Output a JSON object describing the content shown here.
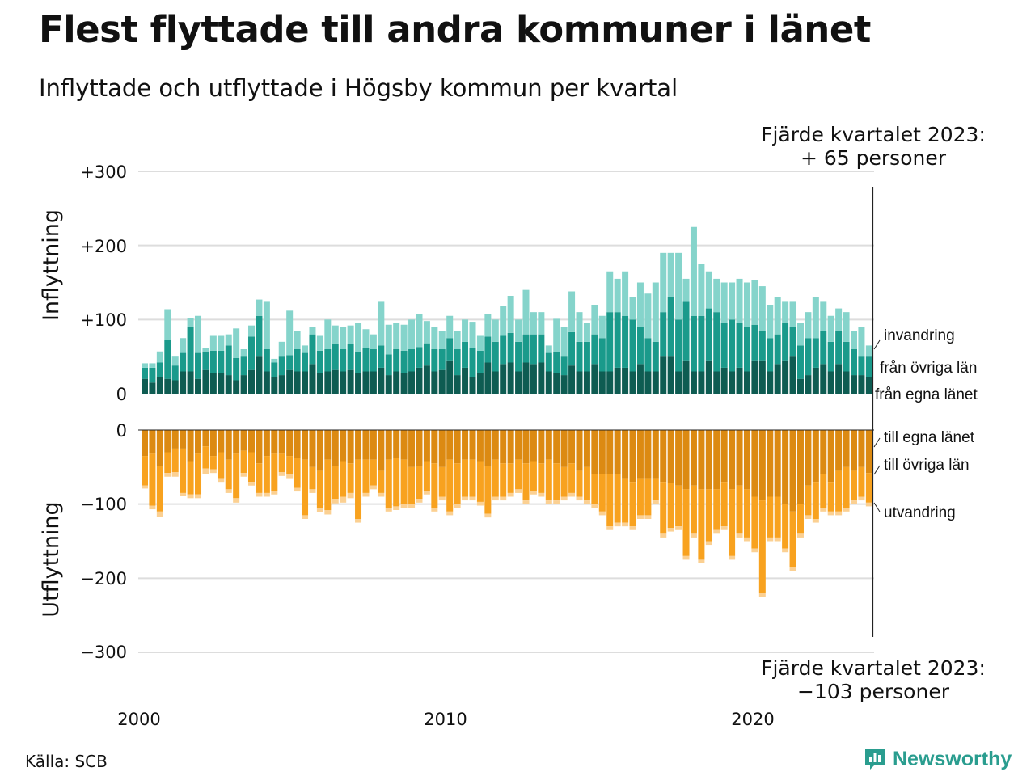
{
  "title": "Flest flyttade till andra kommuner i länet",
  "subtitle": "Inflyttade och utflyttade i Högsby kommun per kvartal",
  "source": "Källa: SCB",
  "brand": "Newsworthy",
  "annotation_top": [
    "Fjärde kvartalet 2023:",
    "+ 65 personer"
  ],
  "annotation_bottom": [
    "Fjärde kvartalet 2023:",
    "−103 personer"
  ],
  "colors": {
    "in_egna": "#0e5c52",
    "in_ovriga": "#1a9a8b",
    "in_invandring": "#85d4cb",
    "ut_egna": "#dc8a12",
    "ut_ovriga": "#f8a21f",
    "ut_utvandring": "#fbd092",
    "grid": "#dddddd",
    "brand": "#2a9d8f"
  },
  "chart_data": [
    {
      "type": "bar",
      "stacked": true,
      "ylabel": "Inflyttning",
      "ylim": [
        0,
        300
      ],
      "yticks": [
        "0",
        "+100",
        "+200",
        "+300"
      ],
      "xticks": [
        "2000",
        "2010",
        "2020"
      ],
      "grid": true,
      "x": [
        "2000 Q1",
        "2000 Q2",
        "2000 Q3",
        "2000 Q4",
        "2001 Q1",
        "2001 Q2",
        "2001 Q3",
        "2001 Q4",
        "2002 Q1",
        "2002 Q2",
        "2002 Q3",
        "2002 Q4",
        "2003 Q1",
        "2003 Q2",
        "2003 Q3",
        "2003 Q4",
        "2004 Q1",
        "2004 Q2",
        "2004 Q3",
        "2004 Q4",
        "2005 Q1",
        "2005 Q2",
        "2005 Q3",
        "2005 Q4",
        "2006 Q1",
        "2006 Q2",
        "2006 Q3",
        "2006 Q4",
        "2007 Q1",
        "2007 Q2",
        "2007 Q3",
        "2007 Q4",
        "2008 Q1",
        "2008 Q2",
        "2008 Q3",
        "2008 Q4",
        "2009 Q1",
        "2009 Q2",
        "2009 Q3",
        "2009 Q4",
        "2010 Q1",
        "2010 Q2",
        "2010 Q3",
        "2010 Q4",
        "2011 Q1",
        "2011 Q2",
        "2011 Q3",
        "2011 Q4",
        "2012 Q1",
        "2012 Q2",
        "2012 Q3",
        "2012 Q4",
        "2013 Q1",
        "2013 Q2",
        "2013 Q3",
        "2013 Q4",
        "2014 Q1",
        "2014 Q2",
        "2014 Q3",
        "2014 Q4",
        "2015 Q1",
        "2015 Q2",
        "2015 Q3",
        "2015 Q4",
        "2016 Q1",
        "2016 Q2",
        "2016 Q3",
        "2016 Q4",
        "2017 Q1",
        "2017 Q2",
        "2017 Q3",
        "2017 Q4",
        "2018 Q1",
        "2018 Q2",
        "2018 Q3",
        "2018 Q4",
        "2019 Q1",
        "2019 Q2",
        "2019 Q3",
        "2019 Q4",
        "2020 Q1",
        "2020 Q2",
        "2020 Q3",
        "2020 Q4",
        "2021 Q1",
        "2021 Q2",
        "2021 Q3",
        "2021 Q4",
        "2022 Q1",
        "2022 Q2",
        "2022 Q3",
        "2022 Q4",
        "2023 Q1",
        "2023 Q2",
        "2023 Q3",
        "2023 Q4"
      ],
      "series": [
        {
          "name": "från egna länet",
          "values": [
            20,
            15,
            22,
            20,
            18,
            30,
            30,
            20,
            32,
            28,
            28,
            25,
            18,
            25,
            32,
            50,
            30,
            22,
            25,
            32,
            30,
            30,
            40,
            28,
            30,
            32,
            30,
            32,
            28,
            30,
            30,
            35,
            25,
            30,
            28,
            30,
            35,
            38,
            30,
            32,
            45,
            25,
            35,
            22,
            28,
            42,
            30,
            40,
            42,
            30,
            42,
            40,
            42,
            30,
            28,
            25,
            38,
            30,
            30,
            40,
            30,
            30,
            35,
            35,
            30,
            40,
            30,
            30,
            50,
            50,
            30,
            45,
            30,
            30,
            45,
            30,
            35,
            30,
            35,
            30,
            45,
            45,
            30,
            40,
            45,
            50,
            20,
            25,
            35,
            40,
            30,
            40,
            30,
            25,
            25,
            22
          ]
        },
        {
          "name": "från övriga län",
          "values": [
            15,
            20,
            20,
            52,
            20,
            25,
            60,
            35,
            25,
            30,
            30,
            40,
            30,
            25,
            45,
            55,
            30,
            20,
            25,
            20,
            30,
            25,
            40,
            30,
            30,
            35,
            30,
            35,
            28,
            32,
            30,
            30,
            28,
            30,
            30,
            30,
            28,
            30,
            30,
            28,
            30,
            35,
            35,
            40,
            30,
            35,
            40,
            38,
            40,
            40,
            38,
            40,
            38,
            25,
            28,
            25,
            45,
            40,
            40,
            40,
            45,
            80,
            75,
            70,
            70,
            50,
            45,
            40,
            60,
            80,
            70,
            80,
            75,
            75,
            70,
            80,
            60,
            70,
            60,
            60,
            48,
            40,
            45,
            40,
            50,
            40,
            45,
            50,
            40,
            45,
            40,
            45,
            40,
            35,
            25,
            28
          ]
        },
        {
          "name": "invandring",
          "values": [
            6,
            6,
            15,
            42,
            12,
            20,
            12,
            50,
            5,
            20,
            20,
            15,
            40,
            10,
            15,
            22,
            65,
            5,
            20,
            60,
            25,
            10,
            10,
            20,
            40,
            25,
            30,
            25,
            40,
            25,
            20,
            60,
            40,
            35,
            35,
            40,
            45,
            30,
            30,
            25,
            30,
            25,
            30,
            35,
            20,
            30,
            30,
            40,
            50,
            30,
            60,
            30,
            30,
            10,
            45,
            40,
            55,
            40,
            25,
            40,
            30,
            55,
            45,
            60,
            30,
            60,
            60,
            80,
            80,
            60,
            90,
            30,
            120,
            70,
            50,
            45,
            55,
            50,
            60,
            60,
            60,
            60,
            45,
            50,
            30,
            35,
            30,
            35,
            55,
            40,
            35,
            30,
            40,
            25,
            40,
            15
          ]
        }
      ]
    },
    {
      "type": "bar",
      "stacked": true,
      "ylabel": "Utflyttning",
      "ylim": [
        -300,
        0
      ],
      "yticks": [
        "0",
        "−100",
        "−200",
        "−300"
      ],
      "grid": true,
      "x_same_as": "Inflyttning",
      "series": [
        {
          "name": "till egna länet",
          "values": [
            -35,
            -32,
            -48,
            -30,
            -25,
            -25,
            -42,
            -32,
            -22,
            -35,
            -30,
            -40,
            -32,
            -28,
            -30,
            -45,
            -35,
            -32,
            -32,
            -35,
            -38,
            -40,
            -50,
            -55,
            -40,
            -48,
            -42,
            -45,
            -40,
            -40,
            -40,
            -55,
            -40,
            -38,
            -40,
            -50,
            -48,
            -42,
            -45,
            -50,
            -40,
            -45,
            -40,
            -40,
            -42,
            -48,
            -40,
            -45,
            -45,
            -40,
            -45,
            -42,
            -45,
            -40,
            -45,
            -50,
            -45,
            -55,
            -50,
            -60,
            -60,
            -60,
            -60,
            -65,
            -70,
            -65,
            -65,
            -65,
            -70,
            -72,
            -75,
            -80,
            -75,
            -80,
            -80,
            -80,
            -70,
            -80,
            -75,
            -80,
            -90,
            -95,
            -90,
            -90,
            -100,
            -110,
            -100,
            -75,
            -70,
            -60,
            -70,
            -55,
            -50,
            -55,
            -50,
            -58
          ]
        },
        {
          "name": "till övriga län",
          "values": [
            -40,
            -70,
            -62,
            -28,
            -32,
            -60,
            -45,
            -55,
            -30,
            -18,
            -35,
            -40,
            -60,
            -30,
            -40,
            -40,
            -50,
            -50,
            -25,
            -25,
            -40,
            -75,
            -30,
            -50,
            -68,
            -45,
            -48,
            -40,
            -80,
            -45,
            -35,
            -30,
            -65,
            -65,
            -60,
            -50,
            -45,
            -40,
            -60,
            -40,
            -70,
            -55,
            -50,
            -50,
            -55,
            -65,
            -50,
            -45,
            -40,
            -40,
            -50,
            -40,
            -40,
            -55,
            -50,
            -40,
            -40,
            -35,
            -45,
            -40,
            -50,
            -70,
            -65,
            -60,
            -60,
            -50,
            -50,
            -30,
            -70,
            -60,
            -55,
            -90,
            -65,
            -95,
            -70,
            -55,
            -60,
            -90,
            -65,
            -65,
            -70,
            -125,
            -55,
            -55,
            -60,
            -75,
            -40,
            -40,
            -50,
            -45,
            -40,
            -55,
            -55,
            -40,
            -40,
            -40
          ]
        },
        {
          "name": "utvandring",
          "values": [
            -4,
            -5,
            -7,
            -5,
            -6,
            -4,
            -5,
            -5,
            -8,
            -5,
            -5,
            -5,
            -6,
            -5,
            -5,
            -5,
            -5,
            -5,
            -5,
            -5,
            -5,
            -5,
            -5,
            -6,
            -6,
            -6,
            -8,
            -7,
            -5,
            -5,
            -5,
            -5,
            -5,
            -5,
            -5,
            -5,
            -5,
            -5,
            -5,
            -5,
            -5,
            -5,
            -5,
            -5,
            -5,
            -5,
            -5,
            -5,
            -5,
            -5,
            -5,
            -5,
            -5,
            -5,
            -5,
            -5,
            -5,
            -5,
            -5,
            -5,
            -5,
            -5,
            -5,
            -5,
            -5,
            -5,
            -5,
            -5,
            -5,
            -5,
            -5,
            -5,
            -5,
            -5,
            -5,
            -5,
            -5,
            -5,
            -5,
            -5,
            -5,
            -5,
            -5,
            -5,
            -5,
            -5,
            -5,
            -5,
            -5,
            -5,
            -5,
            -5,
            -5,
            -5,
            -5,
            -5
          ]
        }
      ]
    }
  ],
  "series_labels_in": [
    "invandring",
    "från övriga län",
    "från egna länet"
  ],
  "series_labels_out": [
    "till egna länet",
    "till övriga län",
    "utvandring"
  ]
}
